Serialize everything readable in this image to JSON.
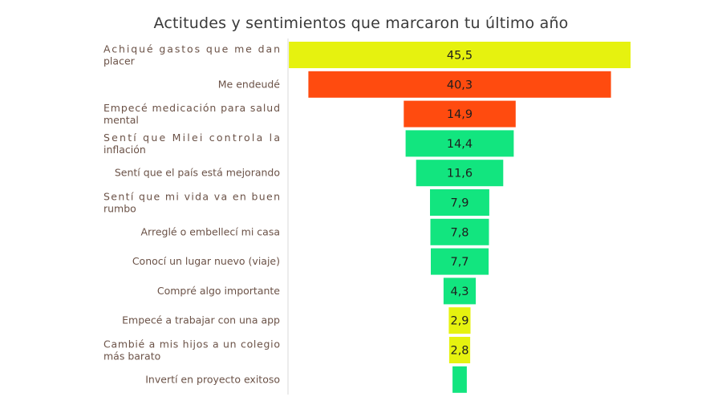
{
  "chart_data": {
    "type": "bar",
    "title": "Actitudes y sentimientos que marcaron tu último año",
    "xlabel": "",
    "ylabel": "",
    "orientation": "horizontal-centered",
    "categories": [
      [
        "Achiqué gastos que me dan",
        "placer"
      ],
      [
        "Me endeudé"
      ],
      [
        "Empecé medicación para salud",
        "mental"
      ],
      [
        "Sentí que Milei controla la",
        "inflación"
      ],
      [
        "Sentí que el país está mejorando"
      ],
      [
        "Sentí que mi vida va en buen",
        "rumbo"
      ],
      [
        "Arreglé o embellecí mi casa"
      ],
      [
        "Conocí un lugar nuevo (viaje)"
      ],
      [
        "Compré algo importante"
      ],
      [
        "Empecé a trabajar con una app"
      ],
      [
        "Cambié a mis hijos a un colegio",
        "más barato"
      ],
      [
        "Invertí en proyecto exitoso"
      ]
    ],
    "values": [
      45.5,
      40.3,
      14.9,
      14.4,
      11.6,
      7.9,
      7.8,
      7.7,
      4.3,
      2.9,
      2.8,
      1.9
    ],
    "value_labels": [
      "45,5",
      "40,3",
      "14,9",
      "14,4",
      "11,6",
      "7,9",
      "7,8",
      "7,7",
      "4,3",
      "2,9",
      "2,8",
      ""
    ],
    "bar_colors": [
      "#e6f20f",
      "#ff4b0f",
      "#ff4b0f",
      "#12e57f",
      "#12e57f",
      "#12e57f",
      "#12e57f",
      "#12e57f",
      "#12e57f",
      "#e6f20f",
      "#e6f20f",
      "#12e57f"
    ],
    "grid": false,
    "legend": "none"
  }
}
